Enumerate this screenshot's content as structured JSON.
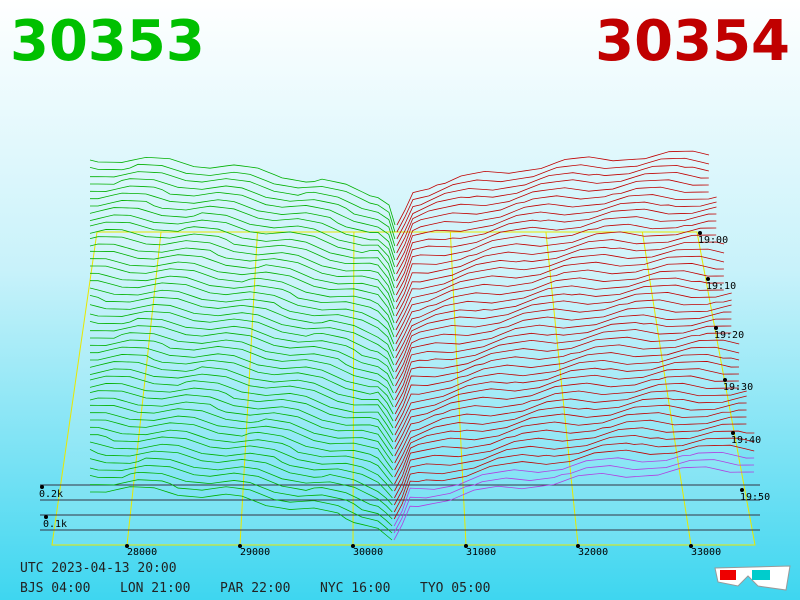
{
  "bid": "30353",
  "ask": "30354",
  "price_labels": [
    "28000",
    "29000",
    "30000",
    "31000",
    "32000",
    "33000"
  ],
  "depth_labels": [
    "0.2k",
    "0.1k"
  ],
  "time_labels": [
    "19:00",
    "19:10",
    "19:20",
    "19:30",
    "19:40",
    "19:50"
  ],
  "utc": "UTC 2023-04-13 20:00",
  "clocks": [
    "BJS 04:00",
    "LON 21:00",
    "PAR 22:00",
    "NYC 16:00",
    "TYO 05:00"
  ]
}
